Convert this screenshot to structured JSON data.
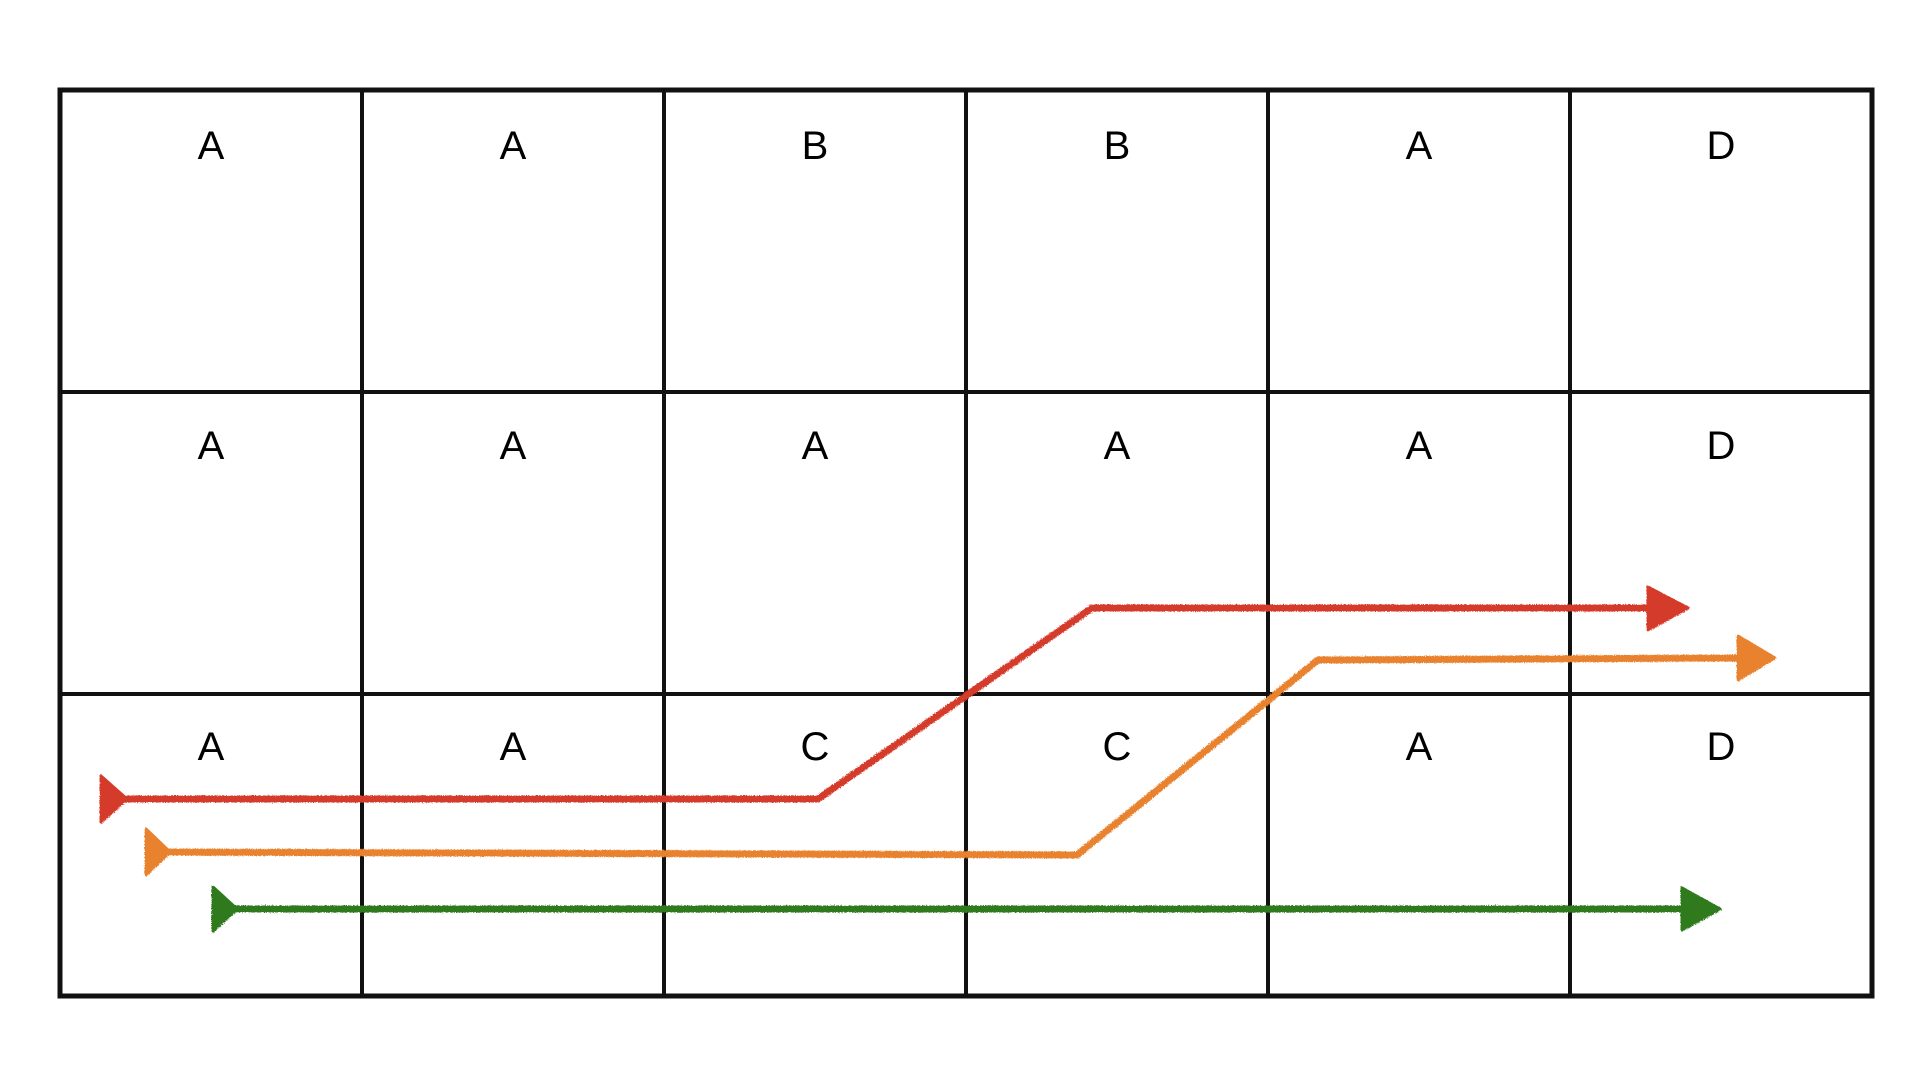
{
  "grid": {
    "rows": [
      [
        "A",
        "A",
        "B",
        "B",
        "A",
        "D"
      ],
      [
        "A",
        "A",
        "A",
        "A",
        "A",
        "D"
      ],
      [
        "A",
        "A",
        "C",
        "C",
        "A",
        "D"
      ]
    ],
    "line_color": "#111111"
  },
  "arrows": [
    {
      "name": "red-arrow",
      "color": "#d43a2a"
    },
    {
      "name": "orange-arrow",
      "color": "#e8822e"
    },
    {
      "name": "green-arrow",
      "color": "#2e7a1e"
    }
  ]
}
